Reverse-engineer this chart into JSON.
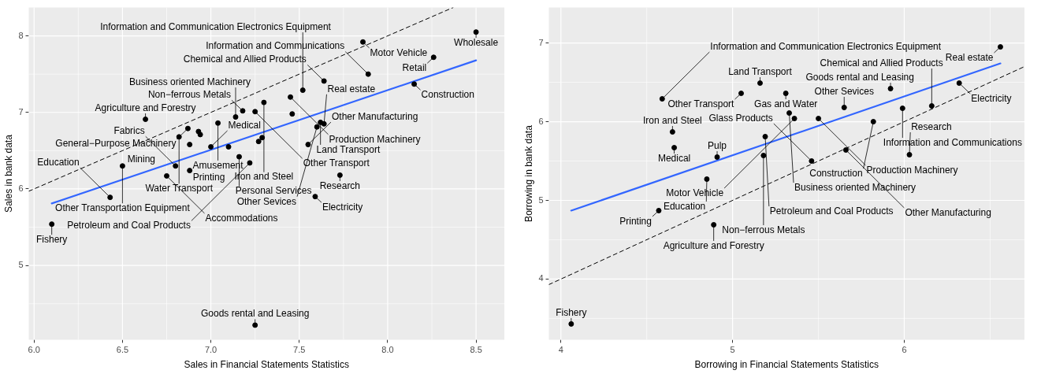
{
  "chart_data": [
    {
      "type": "scatter",
      "xlabel": "Sales in Financial Statements Statistics",
      "ylabel": "Sales in bank data",
      "xlim": [
        5.97,
        8.66
      ],
      "ylim": [
        4.03,
        8.37
      ],
      "xticks": [
        {
          "value": 6,
          "label": "6.0"
        },
        {
          "value": 6.5,
          "label": "6.5"
        },
        {
          "value": 7,
          "label": "7.0"
        },
        {
          "value": 7.5,
          "label": "7.5"
        },
        {
          "value": 8,
          "label": "8.0"
        },
        {
          "value": 8.5,
          "label": "8.5"
        }
      ],
      "yticks": [
        5,
        6,
        7,
        8
      ],
      "grid": true,
      "marker": "circle",
      "series": [
        {
          "color": "#000000",
          "x": [
            8.5,
            7.86,
            8.26,
            7.89,
            8.15,
            7.64,
            7.18,
            7.14,
            7.52,
            7.45,
            7.62,
            6.63,
            7.25,
            7.64,
            7.3,
            7.6,
            6.82,
            6.87,
            7.04,
            7.0,
            6.5,
            6.51,
            6.8,
            7.22,
            7.55,
            6.75,
            6.88,
            7.16,
            7.73,
            6.43,
            7.59,
            6.1,
            7.25,
            6.88,
            7.1,
            7.46,
            7.29,
            7.27,
            6.93,
            6.94
          ],
          "values": [
            8.05,
            7.92,
            7.72,
            7.5,
            7.37,
            7.41,
            7.02,
            6.94,
            7.29,
            7.2,
            6.87,
            6.91,
            7.01,
            6.85,
            7.13,
            6.81,
            6.68,
            6.79,
            6.86,
            6.55,
            6.3,
            null,
            6.3,
            6.34,
            6.58,
            6.17,
            6.24,
            6.42,
            6.18,
            5.89,
            5.9,
            5.54,
            4.22,
            6.58,
            6.55,
            6.98,
            6.67,
            6.62,
            6.75,
            6.71
          ]
        },
        {
          "type": "line",
          "marker": "none",
          "color": "#3366ff",
          "x": [
            6.1,
            8.5
          ],
          "values": [
            5.81,
            7.68
          ]
        },
        {
          "type": "line",
          "marker": "none",
          "line_style": "dashed",
          "color": "#000000",
          "x": [
            5.97,
            8.37
          ],
          "values": [
            5.97,
            8.37
          ]
        }
      ],
      "annotations": [
        {
          "text": "Wholesale",
          "x": 8.5,
          "y": 8.05
        },
        {
          "text": "Motor Vehicle",
          "x": 7.86,
          "y": 7.92
        },
        {
          "text": "Retail",
          "x": 8.26,
          "y": 7.72
        },
        {
          "text": "Information and Communications",
          "x": 7.89,
          "y": 7.5
        },
        {
          "text": "Construction",
          "x": 8.15,
          "y": 7.37
        },
        {
          "text": "Chemical and Allied Products",
          "x": 7.64,
          "y": 7.41
        },
        {
          "text": "Non−ferrous Metals",
          "x": 7.18,
          "y": 7.02
        },
        {
          "text": "Business oriented Machinery",
          "x": 7.14,
          "y": 6.94
        },
        {
          "text": "Information and Communication Electronics Equipment",
          "x": 7.52,
          "y": 7.29
        },
        {
          "text": "Production Machinery",
          "x": 7.45,
          "y": 7.2
        },
        {
          "text": "Land Transport",
          "x": 7.62,
          "y": 6.87
        },
        {
          "text": "Agriculture and Forestry",
          "x": 6.63,
          "y": 6.91
        },
        {
          "text": "Other Transport",
          "x": 7.25,
          "y": 7.01
        },
        {
          "text": "Real estate",
          "x": 7.64,
          "y": 6.85
        },
        {
          "text": "Iron and Steel",
          "x": 7.3,
          "y": 7.13
        },
        {
          "text": "Other Sevices",
          "x": 7.6,
          "y": 6.81
        },
        {
          "text": "Water Transport",
          "x": 6.82,
          "y": 6.68
        },
        {
          "text": "General−Purpose Machinery",
          "x": 6.87,
          "y": 6.79
        },
        {
          "text": "Amusement",
          "x": 7.04,
          "y": 6.86
        },
        {
          "text": "Medical",
          "x": 7.0,
          "y": 6.55
        },
        {
          "text": "Other Transportation Equipment",
          "x": 6.5,
          "y": 6.3
        },
        {
          "text": "Mining",
          "x": 6.51,
          "y": 6.29
        },
        {
          "text": "Fabrics",
          "x": 6.8,
          "y": 6.3
        },
        {
          "text": "Petroleum and Coal Products",
          "x": 7.22,
          "y": 6.34
        },
        {
          "text": "Other Manufacturing",
          "x": 7.55,
          "y": 6.58
        },
        {
          "text": "Accommodations",
          "x": 6.75,
          "y": 6.17
        },
        {
          "text": "Printing",
          "x": 6.88,
          "y": 6.24
        },
        {
          "text": "Personal Services",
          "x": 7.16,
          "y": 6.42
        },
        {
          "text": "Research",
          "x": 7.73,
          "y": 6.18
        },
        {
          "text": "Education",
          "x": 6.43,
          "y": 5.89
        },
        {
          "text": "Electricity",
          "x": 7.59,
          "y": 5.9
        },
        {
          "text": "Fishery",
          "x": 6.1,
          "y": 5.54
        },
        {
          "text": "Goods rental and Leasing",
          "x": 7.25,
          "y": 4.22
        }
      ]
    },
    {
      "type": "scatter",
      "xlabel": "Borrowing in Financial Statements Statistics",
      "ylabel": "Borrowing in bank data",
      "xlim": [
        3.93,
        6.7
      ],
      "ylim": [
        3.23,
        7.45
      ],
      "xticks": [
        4,
        5,
        6
      ],
      "yticks": [
        4,
        5,
        6,
        7
      ],
      "grid": true,
      "marker": "circle",
      "series": [
        {
          "color": "#000000",
          "x": [
            6.56,
            5.16,
            5.31,
            5.05,
            5.92,
            6.32,
            5.33,
            5.5,
            5.65,
            6.16,
            5.99,
            4.65,
            5.19,
            5.82,
            4.66,
            5.36,
            4.91,
            5.18,
            5.66,
            4.59,
            4.85,
            5.46,
            6.03,
            4.57,
            4.89,
            4.06
          ],
          "values": [
            6.95,
            6.49,
            6.36,
            6.36,
            6.42,
            6.49,
            6.11,
            6.04,
            6.18,
            6.2,
            6.17,
            5.87,
            5.81,
            6.0,
            5.67,
            6.04,
            5.55,
            5.57,
            5.64,
            6.29,
            5.27,
            5.5,
            5.58,
            4.87,
            4.69,
            3.43
          ]
        },
        {
          "type": "line",
          "marker": "none",
          "color": "#3366ff",
          "x": [
            4.06,
            6.56
          ],
          "values": [
            4.87,
            6.74
          ]
        },
        {
          "type": "line",
          "marker": "none",
          "line_style": "dashed",
          "color": "#000000",
          "x": [
            3.93,
            6.7
          ],
          "values": [
            3.93,
            6.7
          ]
        }
      ],
      "annotations": [
        {
          "text": "Real estate",
          "x": 6.56,
          "y": 6.95
        },
        {
          "text": "Land Transport",
          "x": 5.16,
          "y": 6.49
        },
        {
          "text": "Gas and Water",
          "x": 5.31,
          "y": 6.36
        },
        {
          "text": "Other Transport",
          "x": 5.05,
          "y": 6.36
        },
        {
          "text": "Goods rental and Leasing",
          "x": 5.92,
          "y": 6.42
        },
        {
          "text": "Electricity",
          "x": 6.32,
          "y": 6.49
        },
        {
          "text": "Business oriented Machinery",
          "x": 5.33,
          "y": 6.11
        },
        {
          "text": "Production Machinery",
          "x": 5.5,
          "y": 6.04
        },
        {
          "text": "Other Sevices",
          "x": 5.65,
          "y": 6.18
        },
        {
          "text": "Chemical and Allied Products",
          "x": 6.16,
          "y": 6.2
        },
        {
          "text": "Information and Communications",
          "x": 5.99,
          "y": 6.17
        },
        {
          "text": "Iron and Steel",
          "x": 4.65,
          "y": 5.87
        },
        {
          "text": "Petroleum and Coal Products",
          "x": 5.19,
          "y": 5.81
        },
        {
          "text": "Construction",
          "x": 5.82,
          "y": 6.0
        },
        {
          "text": "Medical",
          "x": 4.66,
          "y": 5.67
        },
        {
          "text": "Motor Vehicle",
          "x": 5.36,
          "y": 6.04
        },
        {
          "text": "Pulp",
          "x": 4.91,
          "y": 5.55
        },
        {
          "text": "Non−ferrous Metals",
          "x": 5.18,
          "y": 5.57
        },
        {
          "text": "Other Manufacturing",
          "x": 5.66,
          "y": 5.64
        },
        {
          "text": "Information and Communication Electronics Equipment",
          "x": 4.59,
          "y": 6.29
        },
        {
          "text": "Education",
          "x": 4.85,
          "y": 5.27
        },
        {
          "text": "Glass Products",
          "x": 5.46,
          "y": 5.5
        },
        {
          "text": "Research",
          "x": 6.03,
          "y": 5.58
        },
        {
          "text": "Printing",
          "x": 4.57,
          "y": 4.87
        },
        {
          "text": "Agriculture and Forestry",
          "x": 4.89,
          "y": 4.69
        },
        {
          "text": "Fishery",
          "x": 4.06,
          "y": 3.43
        }
      ]
    }
  ]
}
